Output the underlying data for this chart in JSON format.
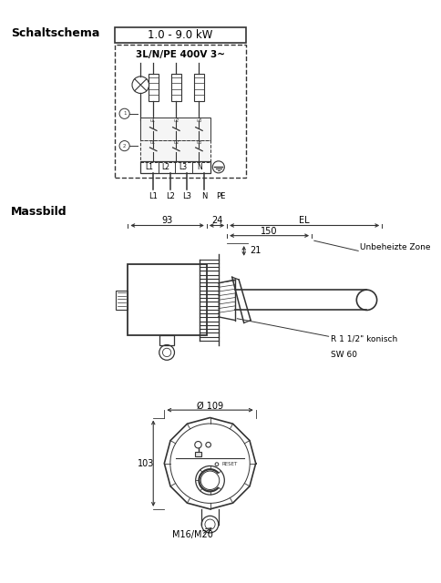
{
  "bg_color": "#ffffff",
  "line_color": "#555555",
  "dark_line": "#333333",
  "text_color": "#000000",
  "schaltschema_label": "Schaltschema",
  "massbild_label": "Massbild",
  "kw_label": "1.0 - 9.0 kW",
  "voltage_label": "3L/N/PE 400V 3~",
  "dim_93": "93",
  "dim_24": "24",
  "dim_EL": "EL",
  "dim_150": "150",
  "dim_21": "21",
  "dim_109": "Ø 109",
  "dim_103": "103",
  "label_unbeheizte": "Unbeheizte Zone",
  "label_r": "R 1 1/2\" konisch",
  "label_sw": "SW 60",
  "label_M": "M16/M20",
  "label_L1": "L1",
  "label_L2": "L2",
  "label_L3": "L3",
  "label_N": "N",
  "label_PE": "PE"
}
